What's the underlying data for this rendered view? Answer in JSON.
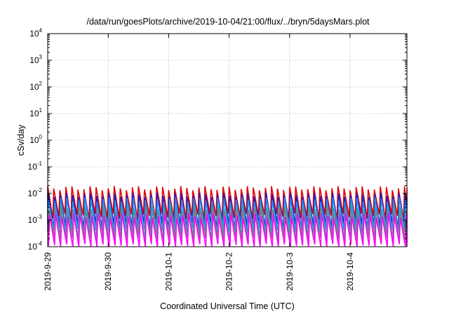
{
  "chart_data": {
    "type": "line",
    "title": "/data/run/goesPlots/archive/2019-10-04/21:00/flux/../bryn/5daysMars.plot",
    "xlabel": "Coordinated Universal Time (UTC)",
    "ylabel": "cSv/day",
    "yscale": "log",
    "ylim": [
      0.0001,
      10000
    ],
    "xlim": [
      0,
      5.94
    ],
    "grid": true,
    "legend": "none",
    "y_ticks": [
      {
        "value": -4,
        "base": "10",
        "exp": "-4"
      },
      {
        "value": -3,
        "base": "10",
        "exp": "-3"
      },
      {
        "value": -2,
        "base": "10",
        "exp": "-2"
      },
      {
        "value": -1,
        "base": "10",
        "exp": "-1"
      },
      {
        "value": 0,
        "base": "10",
        "exp": "0"
      },
      {
        "value": 1,
        "base": "10",
        "exp": "1"
      },
      {
        "value": 2,
        "base": "10",
        "exp": "2"
      },
      {
        "value": 3,
        "base": "10",
        "exp": "3"
      },
      {
        "value": 4,
        "base": "10",
        "exp": "4"
      }
    ],
    "x_ticks": [
      {
        "value": 0,
        "label": "2019-9-29"
      },
      {
        "value": 1,
        "label": "2019-9-30"
      },
      {
        "value": 2,
        "label": "2019-10-1"
      },
      {
        "value": 3,
        "label": "2019-10-2"
      },
      {
        "value": 4,
        "label": "2019-10-3"
      },
      {
        "value": 5,
        "label": "2019-10-4"
      }
    ],
    "series": [
      {
        "color": "#e00000",
        "peak": 0.016,
        "trough": 0.0014,
        "period_days": 0.1,
        "phase": 0.0
      },
      {
        "color": "#2020d0",
        "peak": 0.009,
        "trough": 0.0006,
        "period_days": 0.1,
        "phase": 0.01
      },
      {
        "color": "#1e90ff",
        "peak": 0.006,
        "trough": 0.0004,
        "period_days": 0.1,
        "phase": 0.015
      },
      {
        "color": "#20b0a0",
        "peak": 0.003,
        "trough": 0.00025,
        "period_days": 0.1,
        "phase": 0.02
      },
      {
        "color": "#808080",
        "peak": 0.0025,
        "trough": 0.00018,
        "period_days": 0.1,
        "phase": 0.025
      },
      {
        "color": "#ff00ff",
        "peak": 0.0015,
        "trough": 0.0001,
        "period_days": 0.1,
        "phase": 0.03
      }
    ]
  }
}
